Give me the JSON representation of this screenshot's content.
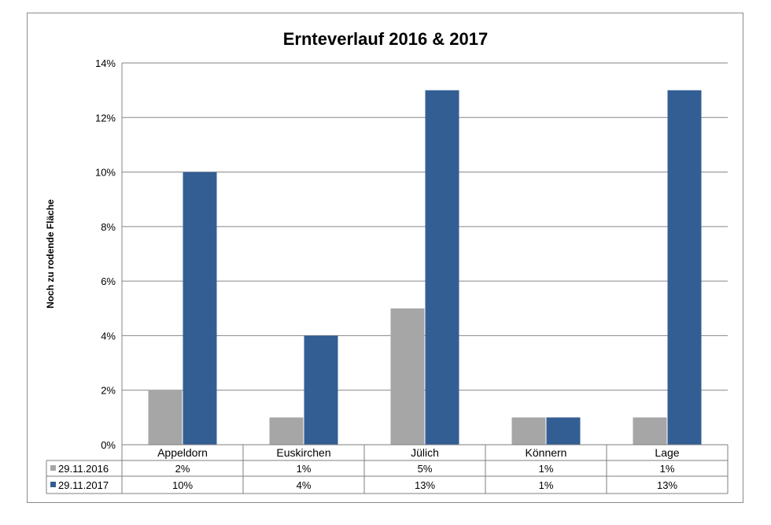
{
  "chart_data": {
    "type": "bar",
    "title": "Ernteverlauf 2016 & 2017",
    "ylabel": "Noch zu rodende Fläche",
    "xlabel": "",
    "categories": [
      "Appeldorn",
      "Euskirchen",
      "Jülich",
      "Könnern",
      "Lage"
    ],
    "series": [
      {
        "name": "29.11.2016",
        "values": [
          2,
          1,
          5,
          1,
          1
        ],
        "labels": [
          "2%",
          "1%",
          "5%",
          "1%",
          "1%"
        ],
        "color": "#a6a6a6"
      },
      {
        "name": "29.11.2017",
        "values": [
          10,
          4,
          13,
          1,
          13
        ],
        "labels": [
          "10%",
          "4%",
          "13%",
          "1%",
          "13%"
        ],
        "color": "#335e94"
      }
    ],
    "ylim": [
      0,
      14
    ],
    "yticks": [
      0,
      2,
      4,
      6,
      8,
      10,
      12,
      14
    ],
    "ytick_labels": [
      "0%",
      "2%",
      "4%",
      "6%",
      "8%",
      "10%",
      "12%",
      "14%"
    ],
    "grid": true,
    "legend": "data-table"
  }
}
